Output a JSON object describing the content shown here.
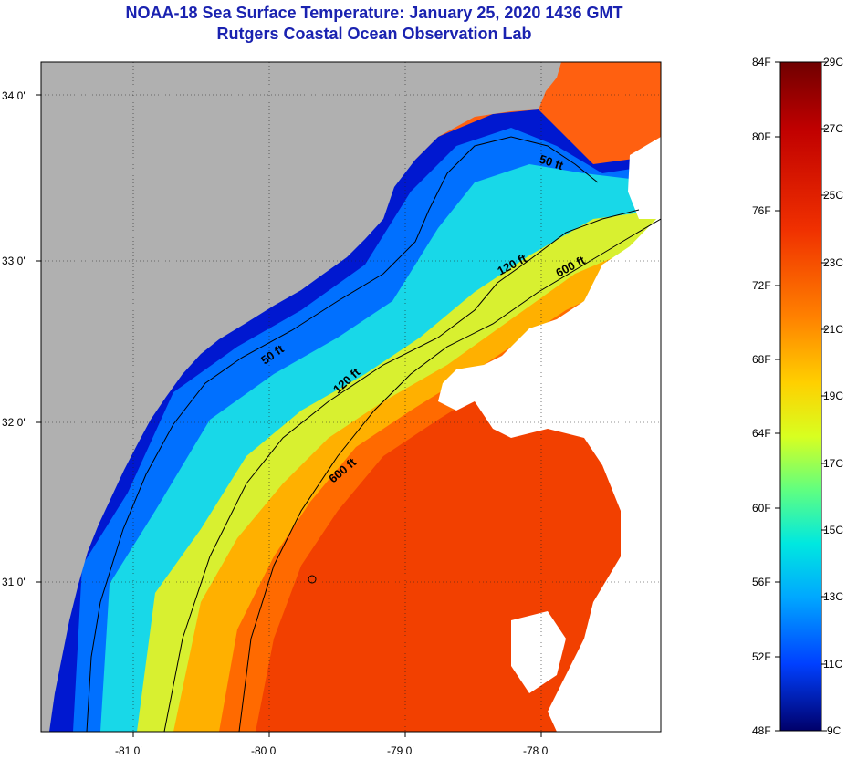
{
  "title_line1": "NOAA-18 Sea Surface Temperature:  January 25, 2020 1436 GMT",
  "title_line2": "Rutgers Coastal Ocean Observation Lab",
  "map": {
    "lat_labels": [
      "34 0'",
      "33 0'",
      "32 0'",
      "31 0'"
    ],
    "lon_labels": [
      "-81 0'",
      "-80 0'",
      "-79 0'",
      "-78 0'"
    ],
    "contours": [
      "50 ft",
      "120 ft",
      "600 ft",
      "50 ft",
      "120 ft",
      "600 ft"
    ],
    "land_color": "#b0b0b0",
    "cloud_color": "#ffffff"
  },
  "colorbar": {
    "f_labels": [
      "84F",
      "80F",
      "76F",
      "72F",
      "68F",
      "64F",
      "60F",
      "56F",
      "52F",
      "48F"
    ],
    "c_labels": [
      "29C",
      "27C",
      "25C",
      "23C",
      "21C",
      "19C",
      "17C",
      "15C",
      "13C",
      "11C",
      "9C"
    ],
    "colors": [
      "#7a0000",
      "#e41a00",
      "#ff7f00",
      "#ffd700",
      "#a0ff30",
      "#00e8d8",
      "#00a0ff",
      "#0030ff",
      "#00008f"
    ]
  }
}
